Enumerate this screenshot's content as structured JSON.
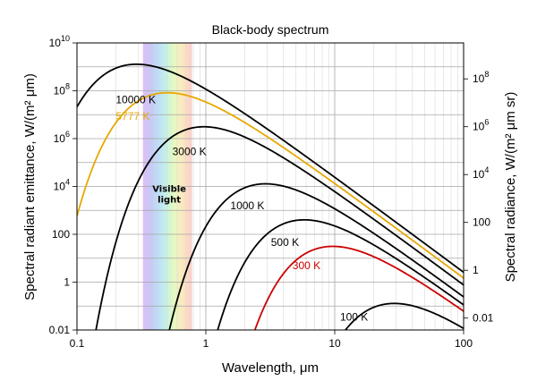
{
  "chart_data": {
    "type": "line",
    "title": "Black-body spectrum",
    "xlabel": "Wavelength, μm",
    "ylabel_left": "Spectral radiant emittance, W/(m² μm)",
    "ylabel_right": "Spectral radiance, W/(m² μm sr)",
    "x_scale": "log",
    "y_scale": "log",
    "xlim": [
      0.1,
      100
    ],
    "ylim": [
      0.01,
      10000000000
    ],
    "x_ticks": [
      {
        "value": 0.1,
        "label": "0.1"
      },
      {
        "value": 1,
        "label": "1"
      },
      {
        "value": 10,
        "label": "10"
      },
      {
        "value": 100,
        "label": "100"
      }
    ],
    "y_ticks_left": [
      {
        "value": 0.01,
        "label": "0.01",
        "sup": ""
      },
      {
        "value": 1,
        "label": "1",
        "sup": ""
      },
      {
        "value": 100,
        "label": "100",
        "sup": ""
      },
      {
        "value": 10000,
        "label": "10",
        "sup": "4"
      },
      {
        "value": 1000000,
        "label": "10",
        "sup": "6"
      },
      {
        "value": 100000000,
        "label": "10",
        "sup": "8"
      },
      {
        "value": 10000000000,
        "label": "10",
        "sup": "10"
      }
    ],
    "y_ticks_right": [
      {
        "radiance": 0.01,
        "label": "0.01",
        "sup": ""
      },
      {
        "radiance": 1,
        "label": "1",
        "sup": ""
      },
      {
        "radiance": 100,
        "label": "100",
        "sup": ""
      },
      {
        "radiance": 10000,
        "label": "10",
        "sup": "4"
      },
      {
        "radiance": 1000000,
        "label": "10",
        "sup": "6"
      },
      {
        "radiance": 100000000,
        "label": "10",
        "sup": "8"
      }
    ],
    "series": [
      {
        "name": "10000 K",
        "temperature": 10000,
        "color": "#000000",
        "label_at": [
          0.2,
          30000000
        ]
      },
      {
        "name": "5777 K",
        "temperature": 5777,
        "color": "#e8a800",
        "label_at": [
          0.2,
          6000000
        ]
      },
      {
        "name": "3000 K",
        "temperature": 3000,
        "color": "#000000",
        "label_at": [
          0.55,
          200000
        ]
      },
      {
        "name": "1000 K",
        "temperature": 1000,
        "color": "#000000",
        "label_at": [
          1.55,
          1100
        ]
      },
      {
        "name": "500 K",
        "temperature": 500,
        "color": "#000000",
        "label_at": [
          3.2,
          33
        ]
      },
      {
        "name": "300 K",
        "temperature": 300,
        "color": "#cc0000",
        "label_at": [
          4.7,
          3.5
        ]
      },
      {
        "name": "100 K",
        "temperature": 100,
        "color": "#000000",
        "label_at": [
          11,
          0.025
        ]
      }
    ],
    "visible_band": {
      "label_line1": "Visible",
      "label_line2": "light",
      "from": 0.4,
      "to": 0.78
    }
  }
}
